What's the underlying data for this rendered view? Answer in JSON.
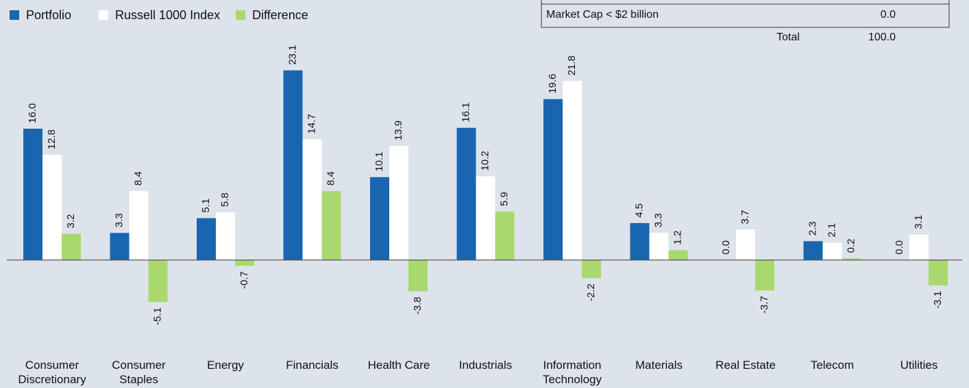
{
  "chart_data": {
    "type": "bar",
    "categories": [
      "Consumer Discretionary",
      "Consumer Staples",
      "Energy",
      "Financials",
      "Health Care",
      "Industrials",
      "Information Technology",
      "Materials",
      "Real Estate",
      "Telecom",
      "Utilities"
    ],
    "series": [
      {
        "name": "Portfolio",
        "color": "#1a65b0",
        "values": [
          16.0,
          3.3,
          5.1,
          23.1,
          10.1,
          16.1,
          19.6,
          4.5,
          0.0,
          2.3,
          0.0
        ],
        "value_labels": [
          "16.0",
          "3.3",
          "5.1",
          "23.1",
          "10.1",
          "16.1",
          "19.6",
          "4.5",
          "0.0",
          "2.3",
          "0.0"
        ]
      },
      {
        "name": "Russell 1000 Index",
        "color": "#ffffff",
        "values": [
          12.8,
          8.4,
          5.8,
          14.7,
          13.9,
          10.2,
          21.8,
          3.3,
          3.7,
          2.1,
          3.1
        ],
        "value_labels": [
          "12.8",
          "8.4",
          "5.8",
          "14.7",
          "13.9",
          "10.2",
          "21.8",
          "3.3",
          "3.7",
          "2.1",
          "3.1"
        ]
      },
      {
        "name": "Difference",
        "color": "#a9d86e",
        "values": [
          3.2,
          -5.1,
          -0.7,
          8.4,
          -3.8,
          5.9,
          -2.2,
          1.2,
          -3.7,
          0.2,
          -3.1
        ],
        "value_labels": [
          "3.2",
          "-5.1",
          "-0.7",
          "8.4",
          "-3.8",
          "5.9",
          "-2.2",
          "1.2",
          "-3.7",
          "0.2",
          "-3.1"
        ]
      }
    ],
    "ylim": [
      -10,
      25
    ],
    "legend": "top-left"
  },
  "table": {
    "rows": [
      [
        "Market Cap < $2 billion",
        "0.0"
      ]
    ],
    "total": [
      "Total",
      "100.0"
    ]
  }
}
